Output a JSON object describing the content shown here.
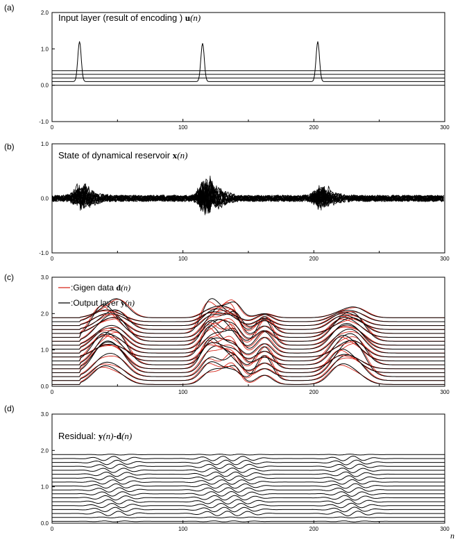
{
  "figure": {
    "x_axis_label": "n"
  },
  "colors": {
    "black": "#000000",
    "red": "#d62418"
  },
  "chart_data": [
    {
      "id": "a",
      "type": "line",
      "panel_label": "(a)",
      "title": {
        "prefix": "Input layer (result of encoding ) ",
        "symbol": "u",
        "arg": "(n)"
      },
      "xlim": [
        0,
        300
      ],
      "ylim": [
        -1.0,
        2.0
      ],
      "x_ticks": [
        0,
        100,
        200,
        300
      ],
      "y_ticks": [
        "2.0",
        "1.0",
        "0.0",
        "-1.0"
      ],
      "y_tick_values": [
        2.0,
        1.0,
        0.0,
        -1.0
      ],
      "baselines": [
        0.0,
        0.1,
        0.2,
        0.3,
        0.4
      ],
      "peaks": [
        {
          "x": 21,
          "height": 1.2,
          "baseline": 0.1
        },
        {
          "x": 115,
          "height": 1.15,
          "baseline": 0.1
        },
        {
          "x": 203,
          "height": 1.2,
          "baseline": 0.1
        }
      ],
      "grid": false
    },
    {
      "id": "b",
      "type": "line",
      "panel_label": "(b)",
      "title": {
        "prefix": "State of dynamical reservoir ",
        "symbol": "x",
        "arg": "(n)"
      },
      "xlim": [
        0,
        300
      ],
      "ylim": [
        -1.0,
        1.0
      ],
      "x_ticks": [
        0,
        100,
        200,
        300
      ],
      "y_ticks": [
        "1.0",
        "0.0",
        "-1.0"
      ],
      "y_tick_values": [
        1.0,
        0.0,
        -1.0
      ],
      "noise_amplitude": 0.06,
      "bursts": [
        {
          "x": 22,
          "amplitude": 0.22
        },
        {
          "x": 118,
          "amplitude": 0.35
        },
        {
          "x": 205,
          "amplitude": 0.2
        }
      ],
      "grid": false
    },
    {
      "id": "c",
      "type": "line",
      "panel_label": "(c)",
      "legend": [
        {
          "marker": ":Gigen data ",
          "symbol": "d",
          "arg": "(n)",
          "color": "#d62418"
        },
        {
          "marker": ":Output layer ",
          "symbol": "y",
          "arg": "(n)",
          "color": "#000000"
        }
      ],
      "legend_position": "top-left",
      "xlim": [
        0,
        300
      ],
      "ylim": [
        0.0,
        3.0
      ],
      "x_ticks": [
        0,
        100,
        200,
        300
      ],
      "y_ticks": [
        "3.0",
        "2.0",
        "1.0",
        "0.0"
      ],
      "y_tick_values": [
        3.0,
        2.0,
        1.0,
        0.0
      ],
      "series_count": 18,
      "baseline_start": 0.05,
      "baseline_step": 0.108,
      "curve_extent": [
        22,
        263
      ],
      "bumps": [
        {
          "x": 38,
          "width": 8
        },
        {
          "x": 50,
          "width": 8
        },
        {
          "x": 120,
          "width": 6
        },
        {
          "x": 130,
          "width": 6
        },
        {
          "x": 140,
          "width": 5
        },
        {
          "x": 162,
          "width": 6
        },
        {
          "x": 220,
          "width": 8
        },
        {
          "x": 232,
          "width": 8
        }
      ],
      "grid": false
    },
    {
      "id": "d",
      "type": "line",
      "panel_label": "(d)",
      "title": {
        "prefix": "Residual: ",
        "symbol": "y",
        "arg": "(n)",
        "dash": "-",
        "symbol2": "d",
        "arg2": "(n)"
      },
      "xlim": [
        0,
        300
      ],
      "ylim": [
        0.0,
        3.0
      ],
      "x_ticks": [
        0,
        100,
        200,
        300
      ],
      "y_ticks": [
        "3.0",
        "2.0",
        "1.0",
        "0.0"
      ],
      "y_tick_values": [
        3.0,
        2.0,
        1.0,
        0.0
      ],
      "series_count": 18,
      "baseline_start": 0.05,
      "baseline_step": 0.108,
      "residual_amplitude": 0.05,
      "grid": false
    }
  ]
}
